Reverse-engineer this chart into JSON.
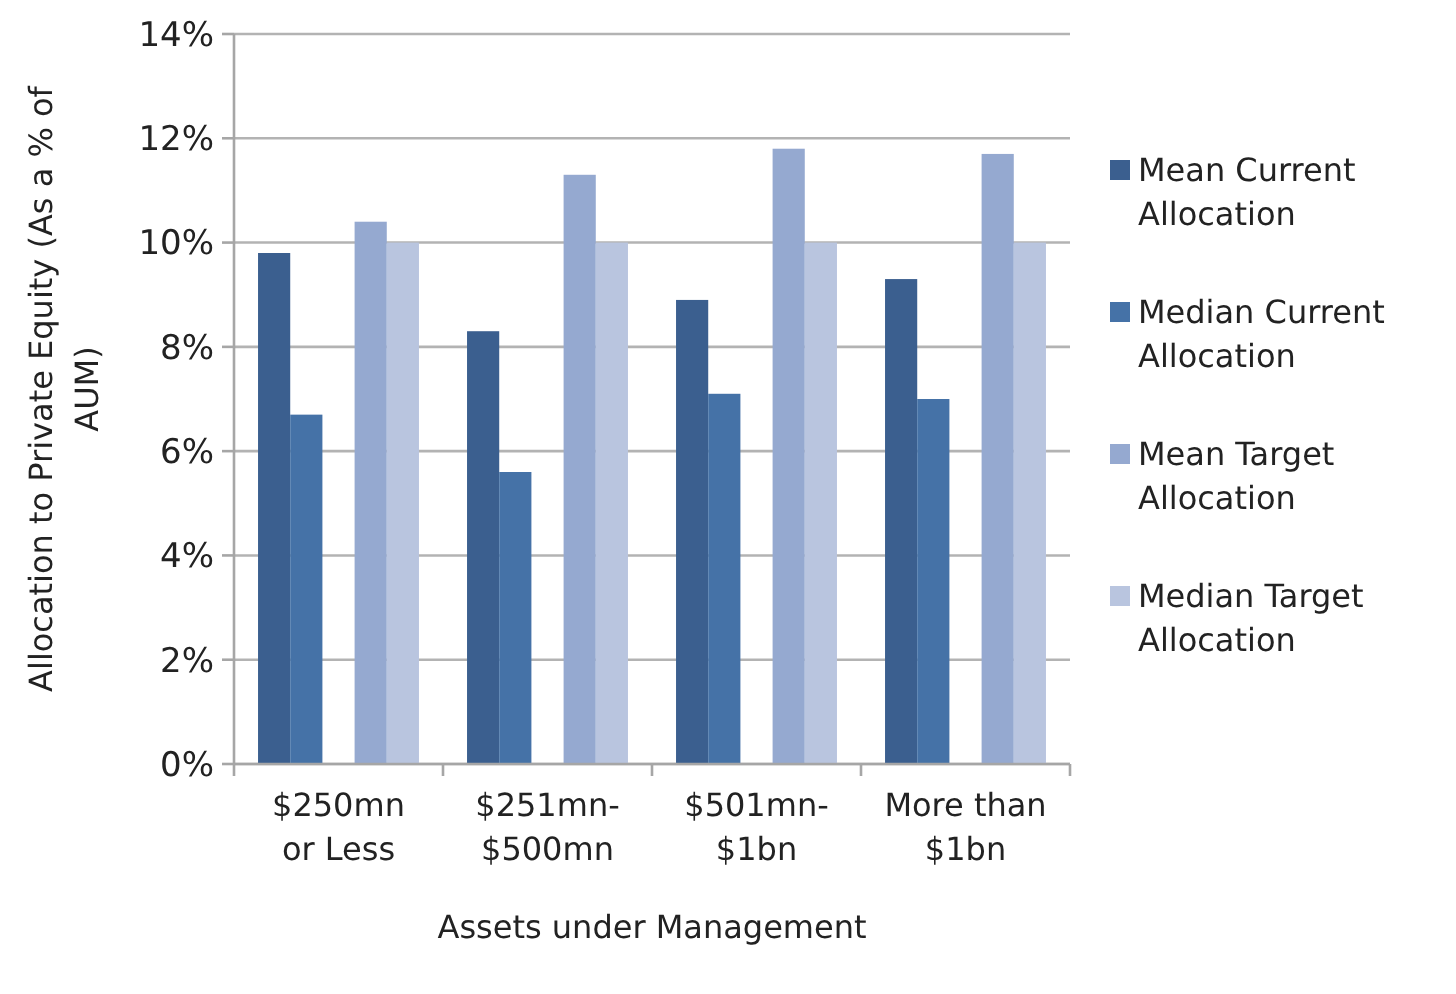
{
  "chart_data": {
    "type": "bar",
    "xlabel": "Assets under Management",
    "ylabel": "Allocation to Private Equity (As a % of AUM)",
    "categories": [
      "$250mn or Less",
      "$251mn-$500mn",
      "$501mn-$1bn",
      "More than $1bn"
    ],
    "series": [
      {
        "name": "Mean Current Allocation",
        "color": "#3b5f8f",
        "values": [
          9.8,
          8.3,
          8.9,
          9.3
        ]
      },
      {
        "name": "Median Current Allocation",
        "color": "#4572a7",
        "values": [
          6.7,
          5.6,
          7.1,
          7.0
        ]
      },
      {
        "name": "Mean Target Allocation",
        "color": "#95a9d0",
        "values": [
          10.4,
          11.3,
          11.8,
          11.7
        ]
      },
      {
        "name": "Median Target Allocation",
        "color": "#b9c5df",
        "values": [
          10.0,
          10.0,
          10.0,
          10.0
        ]
      }
    ],
    "ylim": [
      0,
      14
    ],
    "yticks": [
      {
        "value": 0,
        "label": "0%"
      },
      {
        "value": 2,
        "label": "2%"
      },
      {
        "value": 4,
        "label": "4%"
      },
      {
        "value": 6,
        "label": "6%"
      },
      {
        "value": 8,
        "label": "8%"
      },
      {
        "value": 10,
        "label": "10%"
      },
      {
        "value": 12,
        "label": "12%"
      },
      {
        "value": 14,
        "label": "14%"
      }
    ],
    "grid": "y",
    "legend": "right"
  }
}
